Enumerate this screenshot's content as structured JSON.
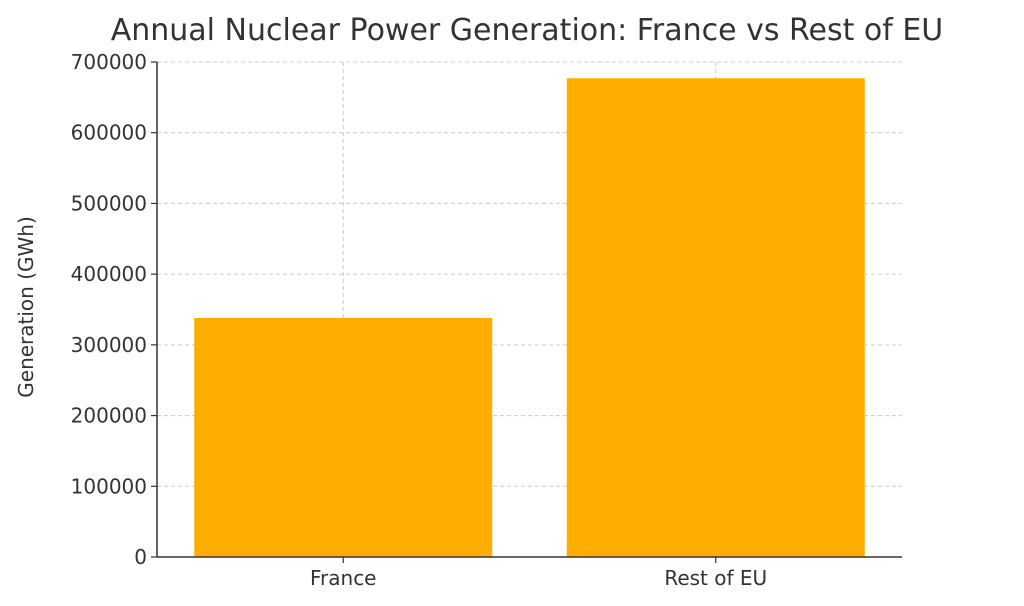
{
  "chart_data": {
    "type": "bar",
    "title": "Annual Nuclear Power Generation: France vs Rest of EU",
    "xlabel": "",
    "ylabel": "Generation (GWh)",
    "categories": [
      "France",
      "Rest of EU"
    ],
    "values": [
      338000,
      677000
    ],
    "ylim": [
      0,
      700000
    ],
    "yticks": [
      0,
      100000,
      200000,
      300000,
      400000,
      500000,
      600000,
      700000
    ],
    "ytick_labels": [
      "0",
      "100000",
      "200000",
      "300000",
      "400000",
      "500000",
      "600000",
      "700000"
    ],
    "grid": true,
    "legend": "none",
    "bar_color": "#FFAE00",
    "axis_color": "#333333",
    "grid_color": "#cccccc"
  }
}
